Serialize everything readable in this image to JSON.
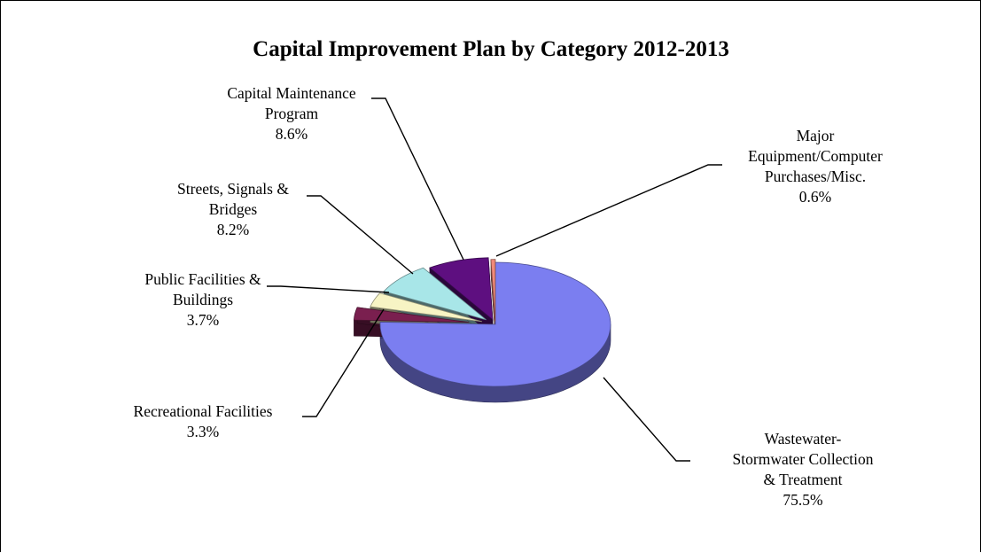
{
  "chart_data": {
    "type": "pie",
    "title": "Capital Improvement Plan by Category 2012-2013",
    "slices": [
      {
        "label_lines": [
          "Wastewater-",
          "Stormwater Collection",
          "& Treatment"
        ],
        "value_label": "75.5%",
        "value": 75.5,
        "color": "#7b7ef0"
      },
      {
        "label_lines": [
          "Recreational Facilities"
        ],
        "value_label": "3.3%",
        "value": 3.3,
        "color": "#7a1f4f"
      },
      {
        "label_lines": [
          "Public Facilities &",
          "Buildings"
        ],
        "value_label": "3.7%",
        "value": 3.7,
        "color": "#f7f4c4"
      },
      {
        "label_lines": [
          "Streets, Signals &",
          "Bridges"
        ],
        "value_label": "8.2%",
        "value": 8.2,
        "color": "#a8e6e8"
      },
      {
        "label_lines": [
          "Capital Maintenance",
          "Program"
        ],
        "value_label": "8.6%",
        "value": 8.6,
        "color": "#5e0f80"
      },
      {
        "label_lines": [
          "Major",
          "Equipment/Computer",
          "Purchases/Misc."
        ],
        "value_label": "0.6%",
        "value": 0.6,
        "color": "#f08a7a"
      }
    ],
    "legend": "none"
  }
}
